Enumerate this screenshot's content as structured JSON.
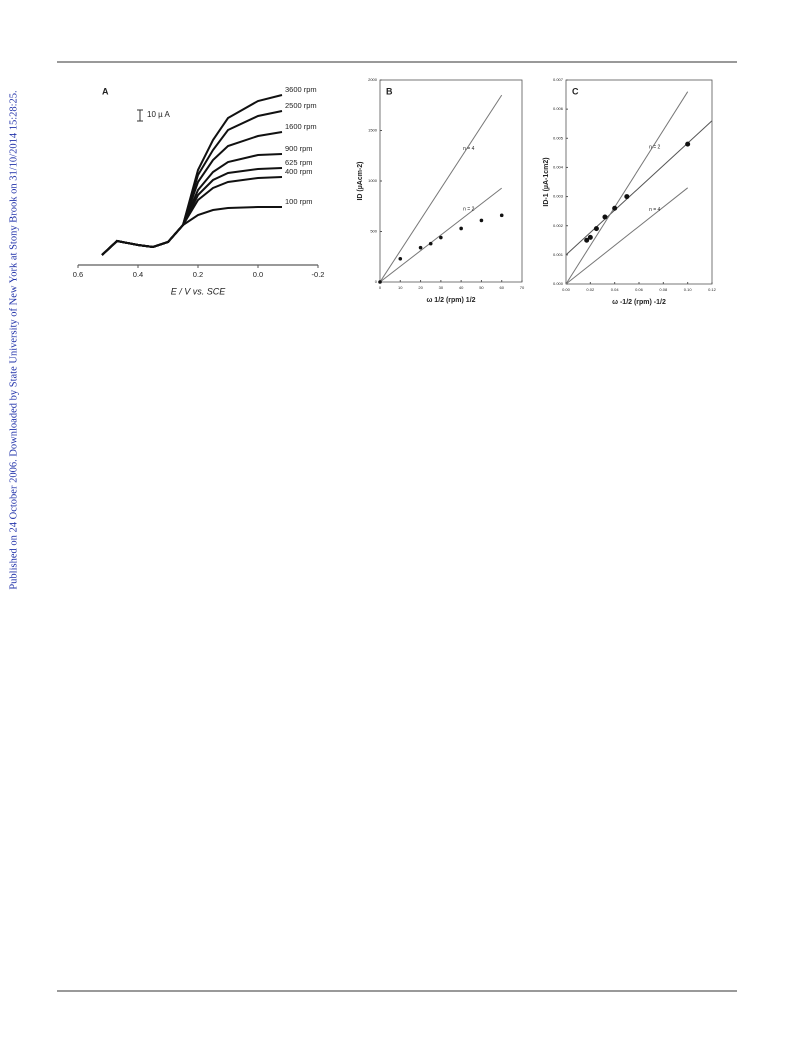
{
  "side_note": "Published on 24 October 2006. Downloaded by State University of New York at Stony Brook on 31/10/2014 15:28:25.",
  "chart_data": [
    {
      "type": "line",
      "title": "A",
      "scale_label": "10 µ A",
      "xlabel": "E / V vs. SCE",
      "x": [
        0.52,
        0.47,
        0.4,
        0.35,
        0.3,
        0.25,
        0.2,
        0.15,
        0.1,
        0,
        -0.08
      ],
      "xlim": [
        0.6,
        -0.2
      ],
      "xticks": [
        0.6,
        0.4,
        0.2,
        {
          "value": 0,
          "label": "0.0"
        },
        -0.2
      ],
      "ylim": [
        0,
        170
      ],
      "series": [
        {
          "name": "3600 rpm",
          "color": "#111111",
          "values": [
            10,
            24,
            20,
            18,
            23,
            40,
            95,
            125,
            147,
            164,
            170
          ]
        },
        {
          "name": "2500 rpm",
          "color": "#111111",
          "values": [
            10,
            24,
            20,
            18,
            23,
            40,
            90,
            115,
            135,
            149,
            154
          ]
        },
        {
          "name": "1600 rpm",
          "color": "#111111",
          "values": [
            10,
            24,
            20,
            18,
            23,
            40,
            83,
            105,
            119,
            129,
            133
          ]
        },
        {
          "name": "900 rpm",
          "color": "#111111",
          "values": [
            10,
            24,
            20,
            18,
            23,
            40,
            75,
            93,
            103,
            110,
            111
          ]
        },
        {
          "name": "625 rpm",
          "color": "#111111",
          "values": [
            10,
            24,
            20,
            18,
            23,
            40,
            70,
            85,
            92,
            96,
            97
          ]
        },
        {
          "name": "400 rpm",
          "color": "#111111",
          "values": [
            10,
            24,
            20,
            18,
            23,
            40,
            65,
            77,
            83,
            87,
            88
          ]
        },
        {
          "name": "100 rpm",
          "color": "#111111",
          "values": [
            10,
            24,
            20,
            18,
            23,
            40,
            50,
            55,
            57,
            58,
            58
          ]
        }
      ]
    },
    {
      "type": "scatter",
      "title": "B",
      "xlabel": "ω 1/2 (rpm) 1/2",
      "ylabel": "ID (µAcm-2)",
      "xlim": [
        0,
        70
      ],
      "xticks": [
        0,
        10,
        20,
        30,
        40,
        50,
        60,
        70
      ],
      "ylim": [
        0,
        2000
      ],
      "yticks": [
        0,
        500,
        1000,
        1500,
        2000
      ],
      "points": {
        "color": "#111111",
        "x": [
          0,
          10,
          20,
          25,
          30,
          40,
          50,
          60
        ],
        "values": [
          0,
          230,
          340,
          380,
          440,
          530,
          610,
          660
        ]
      },
      "lines": [
        {
          "name": "n = 4",
          "color": "#777777",
          "x": [
            0,
            60
          ],
          "values": [
            0,
            1850
          ]
        },
        {
          "name": "n = 2",
          "color": "#777777",
          "x": [
            0,
            60
          ],
          "values": [
            0,
            930
          ]
        }
      ]
    },
    {
      "type": "scatter",
      "title": "C",
      "xlabel": "ω -1/2 (rpm) -1/2",
      "ylabel": "ID-1 (µA-1cm2)",
      "xlim": [
        0,
        0.12
      ],
      "xticks": [
        {
          "value": 0,
          "label": "0.00"
        },
        0.02,
        0.04,
        0.06,
        0.08,
        {
          "value": 0.1,
          "label": "0.10"
        },
        0.12
      ],
      "ylim": [
        0,
        0.007
      ],
      "yticks": [
        {
          "value": 0,
          "label": "0.000"
        },
        0.001,
        0.002,
        0.003,
        0.004,
        0.005,
        0.006,
        0.007
      ],
      "points": {
        "color": "#111111",
        "x": [
          0.017,
          0.02,
          0.025,
          0.032,
          0.04,
          0.05,
          0.1
        ],
        "values": [
          0.0015,
          0.0016,
          0.0019,
          0.0023,
          0.0026,
          0.003,
          0.0048
        ]
      },
      "lines": [
        {
          "color": "#555555",
          "x": [
            0,
            0.12
          ],
          "values": [
            0.001,
            0.0056
          ]
        },
        {
          "name": "n = 2",
          "color": "#777777",
          "x": [
            0,
            0.1
          ],
          "values": [
            0,
            0.0066
          ]
        },
        {
          "name": "n = 4",
          "color": "#777777",
          "x": [
            0,
            0.1
          ],
          "values": [
            0,
            0.0033
          ]
        }
      ]
    }
  ]
}
